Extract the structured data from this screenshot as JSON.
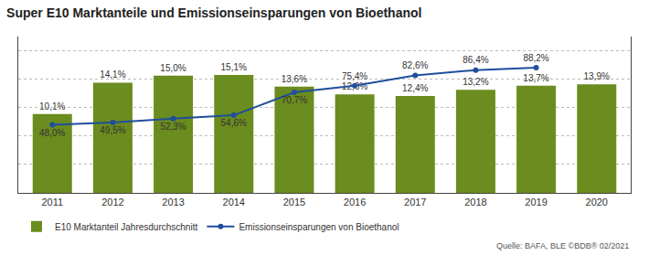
{
  "chart_data": {
    "type": "bar",
    "title": "Super E10 Marktanteile und Emissionseinsparungen von Bioethanol",
    "categories": [
      "2011",
      "2012",
      "2013",
      "2014",
      "2015",
      "2016",
      "2017",
      "2018",
      "2019",
      "2020"
    ],
    "series": [
      {
        "name": "E10 Marktanteil Jahresdurchschnitt",
        "type": "bar",
        "color": "#6b8c1e",
        "values": [
          10.1,
          14.1,
          15.0,
          15.1,
          13.6,
          12.6,
          12.4,
          13.2,
          13.7,
          13.9
        ],
        "value_labels": [
          "10,1%",
          "14,1%",
          "15,0%",
          "15,1%",
          "13,6%",
          "12,6%",
          "12,4%",
          "13,2%",
          "13,7%",
          "13,9%"
        ]
      },
      {
        "name": "Emissionseinsparungen von Bioethanol",
        "type": "line",
        "axis": "y2",
        "color": "#1f4e9c",
        "marker": "circle",
        "values": [
          48.0,
          49.5,
          52.3,
          54.6,
          70.7,
          75.4,
          82.6,
          86.4,
          88.2,
          null
        ],
        "value_labels": [
          "48,0%",
          "49,5%",
          "52,3%",
          "54,6%",
          "70,7%",
          "75,4%",
          "82,6%",
          "86,4%",
          "88,2%",
          null
        ]
      }
    ],
    "ylim": [
      0,
      20
    ],
    "yticks": [],
    "y2lim": [
      0,
      110
    ],
    "y2ticks": [
      20,
      40,
      60,
      80,
      100
    ],
    "grid": true,
    "tick_labels": "x",
    "data_labels": true,
    "legend": "bottom",
    "annotations": [
      "Quelle: BAFA, BLE ©BDB® 02/2021"
    ]
  }
}
